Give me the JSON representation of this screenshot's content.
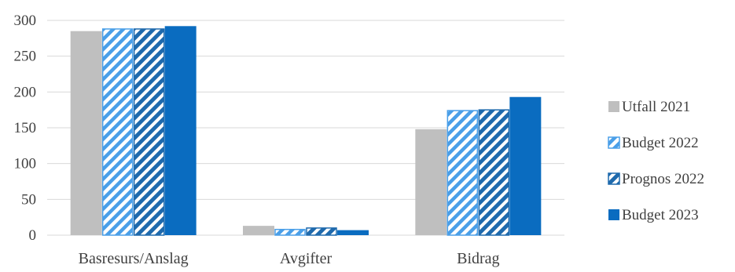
{
  "chart_data": {
    "type": "bar",
    "categories": [
      "Basresurs/Anslag",
      "Avgifter",
      "Bidrag"
    ],
    "series": [
      {
        "name": "Utfall 2021",
        "values": [
          285,
          13,
          148
        ],
        "color": "#bfbfbf",
        "pattern": "solid"
      },
      {
        "name": "Budget 2022",
        "values": [
          288,
          8,
          174
        ],
        "color": "#4a9fe8",
        "pattern": "hatch-light"
      },
      {
        "name": "Prognos 2022",
        "values": [
          288,
          10,
          175
        ],
        "color": "#1f6aad",
        "pattern": "hatch-dark"
      },
      {
        "name": "Budget 2023",
        "values": [
          292,
          7,
          193
        ],
        "color": "#0a6cc0",
        "pattern": "solid"
      }
    ],
    "y_ticks": [
      "0",
      "50",
      "100",
      "150",
      "200",
      "250",
      "300"
    ],
    "ylim": [
      0,
      300
    ],
    "grid": true,
    "legend_position": "right"
  }
}
